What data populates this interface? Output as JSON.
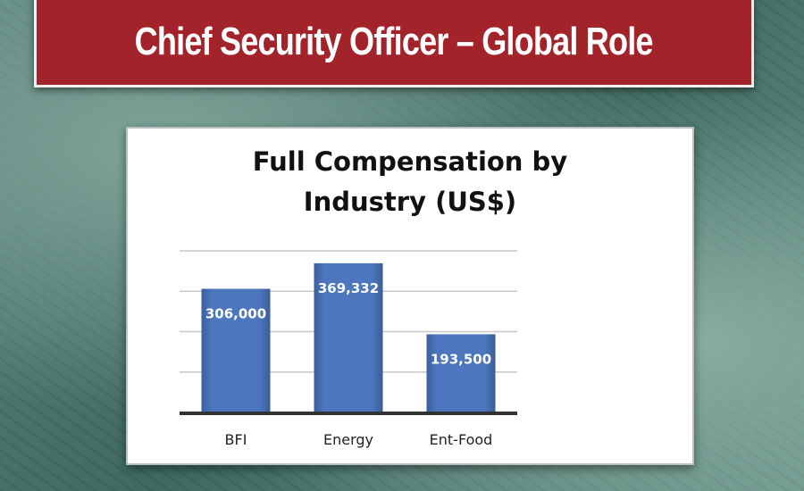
{
  "banner": {
    "title": "Chief Security Officer – Global Role"
  },
  "colors": {
    "banner": "#a3232b",
    "bar": "#4a72b8",
    "background": "#5d877d"
  },
  "chart_data": {
    "type": "bar",
    "title_lines": [
      "Full Compensation by",
      "Industry  (US$)"
    ],
    "categories": [
      "BFI",
      "Energy",
      "Ent-Food"
    ],
    "values": [
      306000,
      369332,
      193500
    ],
    "data_labels": [
      "306,000",
      "369,332",
      "193,500"
    ],
    "xlabel": "",
    "ylabel": "",
    "ylim": [
      0,
      400000
    ],
    "gridlines": [
      100000,
      200000,
      300000,
      400000
    ],
    "grid": true,
    "legend": "none"
  }
}
